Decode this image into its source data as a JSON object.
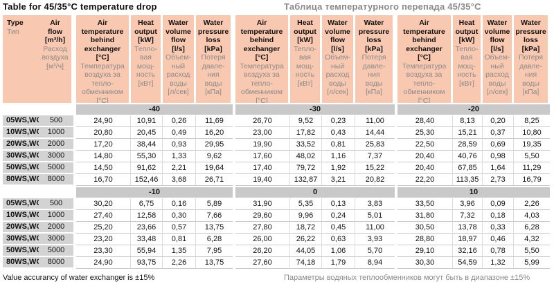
{
  "title_en": "Table for 45/35°C temperature drop",
  "title_ru": "Таблица температурного перепада 45/35°C",
  "footer_en": "Value accurancy of water exchanger is ±15%",
  "footer_ru": "Параметры водяных теплообменников могут быть в диапазоне ±15%",
  "colors": {
    "header_bg": "#f9c8b1",
    "band_bg": "#c9c9c9",
    "label_bg": "#d3d3d3",
    "gray_text": "#8a8a8a",
    "row_separator": "#c9c9c9"
  },
  "header": {
    "type": {
      "en": "Type",
      "ru": "Тип"
    },
    "airflow": {
      "en": "Air\nflow\n[m³/h]",
      "ru": "Расход\nвоздуха\n[м³/ч]"
    },
    "group_cols": [
      {
        "key": "air-temperature",
        "en": "Air\ntemperature\nbehind\nexchanger\n[°C]",
        "ru": "Температура\nвоздуха за\nтепло-\nобменником\n[°C]"
      },
      {
        "key": "heat-output",
        "en": "Heat\noutput\n[kW]",
        "ru": "Тепло-\nвая\nмощ-\nность\n[кВт]"
      },
      {
        "key": "water-volume-flow",
        "en": "Water\nvolume\nflow\n[l/s]",
        "ru": "Объем-\nный\nрасход\nводы\n[л/сек]"
      },
      {
        "key": "water-pressure-loss",
        "en": "Water\npressure\nloss\n[kPa]",
        "ru": "Потеря\nдавле-\nния\nводы\n[кПа]"
      }
    ]
  },
  "sections": [
    {
      "bands": [
        "-40",
        "-30",
        "-20"
      ],
      "rows": [
        {
          "type": "05WS,WC",
          "airflow": "500",
          "values": [
            [
              "24,90",
              "10,91",
              "0,26",
              "11,69"
            ],
            [
              "26,70",
              "9,52",
              "0,23",
              "11,00"
            ],
            [
              "28,40",
              "8,13",
              "0,20",
              "8,25"
            ]
          ]
        },
        {
          "type": "10WS,WC",
          "airflow": "1000",
          "values": [
            [
              "20,80",
              "20,45",
              "0,49",
              "16,20"
            ],
            [
              "23,00",
              "17,82",
              "0,43",
              "14,44"
            ],
            [
              "25,30",
              "15,21",
              "0,37",
              "10,80"
            ]
          ]
        },
        {
          "type": "20WS,WC",
          "airflow": "2000",
          "values": [
            [
              "17,20",
              "38,44",
              "0,93",
              "29,95"
            ],
            [
              "19,90",
              "33,52",
              "0,81",
              "25,83"
            ],
            [
              "22,50",
              "28,59",
              "0,69",
              "19,35"
            ]
          ]
        },
        {
          "type": "30WS,WC",
          "airflow": "3000",
          "values": [
            [
              "14,80",
              "55,30",
              "1,33",
              "9,62"
            ],
            [
              "17,60",
              "48,02",
              "1,16",
              "7,37"
            ],
            [
              "20,40",
              "40,76",
              "0,98",
              "5,50"
            ]
          ]
        },
        {
          "type": "50WS,WC",
          "airflow": "5000",
          "values": [
            [
              "14,50",
              "91,62",
              "2,21",
              "19,64"
            ],
            [
              "17,40",
              "79,72",
              "1,92",
              "15,22"
            ],
            [
              "20,40",
              "67,85",
              "1,64",
              "11,29"
            ]
          ]
        },
        {
          "type": "80WS,WC",
          "airflow": "8000",
          "values": [
            [
              "16,70",
              "152,46",
              "3,68",
              "26,71"
            ],
            [
              "19,40",
              "132,87",
              "3,21",
              "20,82"
            ],
            [
              "22,20",
              "113,35",
              "2,73",
              "16,79"
            ]
          ]
        }
      ]
    },
    {
      "bands": [
        "-10",
        "0",
        "10"
      ],
      "rows": [
        {
          "type": "05WS,WC",
          "airflow": "500",
          "values": [
            [
              "30,20",
              "6,75",
              "0,16",
              "5,89"
            ],
            [
              "31,90",
              "5,35",
              "0,13",
              "3,83"
            ],
            [
              "33,50",
              "3,96",
              "0,09",
              "2,26"
            ]
          ]
        },
        {
          "type": "10WS,WC",
          "airflow": "1000",
          "values": [
            [
              "27,40",
              "12,58",
              "0,30",
              "7,66"
            ],
            [
              "29,60",
              "9,96",
              "0,24",
              "5,01"
            ],
            [
              "31,80",
              "7,32",
              "0,18",
              "4,03"
            ]
          ]
        },
        {
          "type": "20WS,WC",
          "airflow": "2000",
          "values": [
            [
              "25,20",
              "23,66",
              "0,57",
              "13,75"
            ],
            [
              "27,80",
              "18,72",
              "0,45",
              "11,00"
            ],
            [
              "30,50",
              "13,78",
              "0,33",
              "6,28"
            ]
          ]
        },
        {
          "type": "30WS,WC",
          "airflow": "3000",
          "values": [
            [
              "23,20",
              "33,48",
              "0,81",
              "6,28"
            ],
            [
              "26,00",
              "26,22",
              "0,63",
              "3,93"
            ],
            [
              "28,80",
              "18,97",
              "0,46",
              "4,32"
            ]
          ]
        },
        {
          "type": "50WS,WC",
          "airflow": "5000",
          "values": [
            [
              "23,30",
              "55,94",
              "1,35",
              "7,95"
            ],
            [
              "26,20",
              "44,05",
              "1,06",
              "5,70"
            ],
            [
              "29,10",
              "32,16",
              "0,78",
              "5,50"
            ]
          ]
        },
        {
          "type": "80WS,WC",
          "airflow": "8000",
          "values": [
            [
              "24,90",
              "93,75",
              "2,26",
              "13,75"
            ],
            [
              "27,60",
              "74,18",
              "1,79",
              "8,94"
            ],
            [
              "30,30",
              "54,59",
              "1,32",
              "5,99"
            ]
          ]
        }
      ]
    }
  ]
}
